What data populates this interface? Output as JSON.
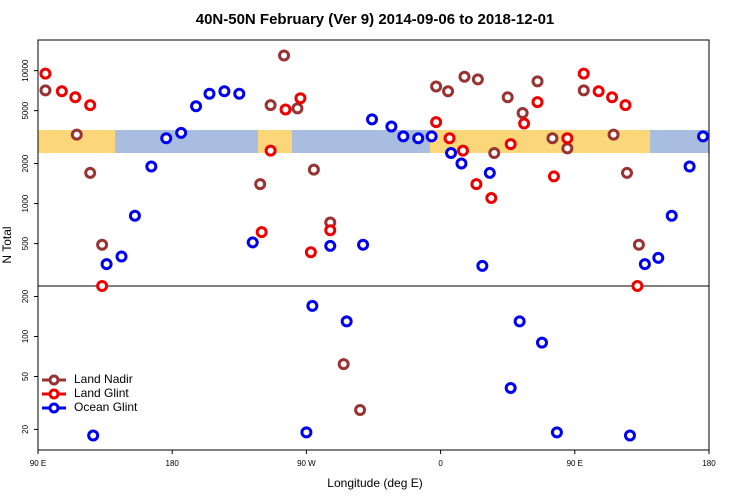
{
  "chart_data": {
    "type": "scatter",
    "title": "40N-50N February (Ver 9)   2014-09-06 to 2018-12-01",
    "x_label": "Longitude (deg E)",
    "y_label": "N Total",
    "ylog": true,
    "xlim": [
      90,
      540
    ],
    "ylim": [
      14,
      17000
    ],
    "xticks": [
      {
        "value": 90,
        "label": "90 E"
      },
      {
        "value": 180,
        "label": "180"
      },
      {
        "value": 270,
        "label": "90 W"
      },
      {
        "value": 360,
        "label": "0"
      },
      {
        "value": 450,
        "label": "90 E"
      },
      {
        "value": 540,
        "label": "180"
      }
    ],
    "yticks": [
      20,
      50,
      100,
      200,
      500,
      1000,
      2000,
      5000,
      10000
    ],
    "hline": 240,
    "legend": "bottom-left",
    "series": [
      {
        "name": "Land Nadir",
        "color": "#993333",
        "x": [
          95,
          116,
          125,
          133,
          239,
          246,
          255,
          264,
          275,
          286,
          295,
          306,
          357,
          365,
          376,
          385,
          396,
          405,
          415,
          425,
          435,
          445,
          456,
          476,
          485,
          493
        ],
        "values": [
          7100,
          3300,
          1700,
          490,
          1400,
          5500,
          13000,
          5200,
          1800,
          720,
          62,
          28,
          7600,
          7000,
          9000,
          8600,
          2400,
          6300,
          4800,
          8300,
          3100,
          2600,
          7100,
          3300,
          1700,
          490
        ]
      },
      {
        "name": "Land Glint",
        "color": "#ee0000",
        "x": [
          95,
          106,
          115,
          125,
          133,
          240,
          246,
          256,
          266,
          273,
          286,
          357,
          366,
          375,
          384,
          394,
          407,
          416,
          425,
          436,
          445,
          456,
          466,
          475,
          484,
          492
        ],
        "values": [
          9500,
          7000,
          6300,
          5500,
          240,
          610,
          2500,
          5100,
          6200,
          430,
          630,
          4100,
          3100,
          2500,
          1400,
          1100,
          2800,
          4000,
          5800,
          1600,
          3100,
          9500,
          7000,
          6300,
          5500,
          240
        ]
      },
      {
        "name": "Ocean Glint",
        "color": "#0000ee",
        "x": [
          127,
          136,
          146,
          155,
          166,
          176,
          186,
          196,
          205,
          215,
          225,
          234,
          270,
          274,
          286,
          297,
          308,
          314,
          327,
          335,
          345,
          354,
          367,
          374,
          388,
          393,
          407,
          413,
          428,
          438,
          487,
          497,
          506,
          515,
          527,
          536
        ],
        "values": [
          18,
          350,
          400,
          810,
          1900,
          3100,
          3400,
          5400,
          6700,
          7000,
          6700,
          510,
          19,
          170,
          480,
          130,
          490,
          4300,
          3800,
          3200,
          3100,
          3200,
          2400,
          2000,
          340,
          1700,
          41,
          130,
          90,
          19,
          18,
          350,
          390,
          810,
          1900,
          3200
        ]
      }
    ]
  }
}
